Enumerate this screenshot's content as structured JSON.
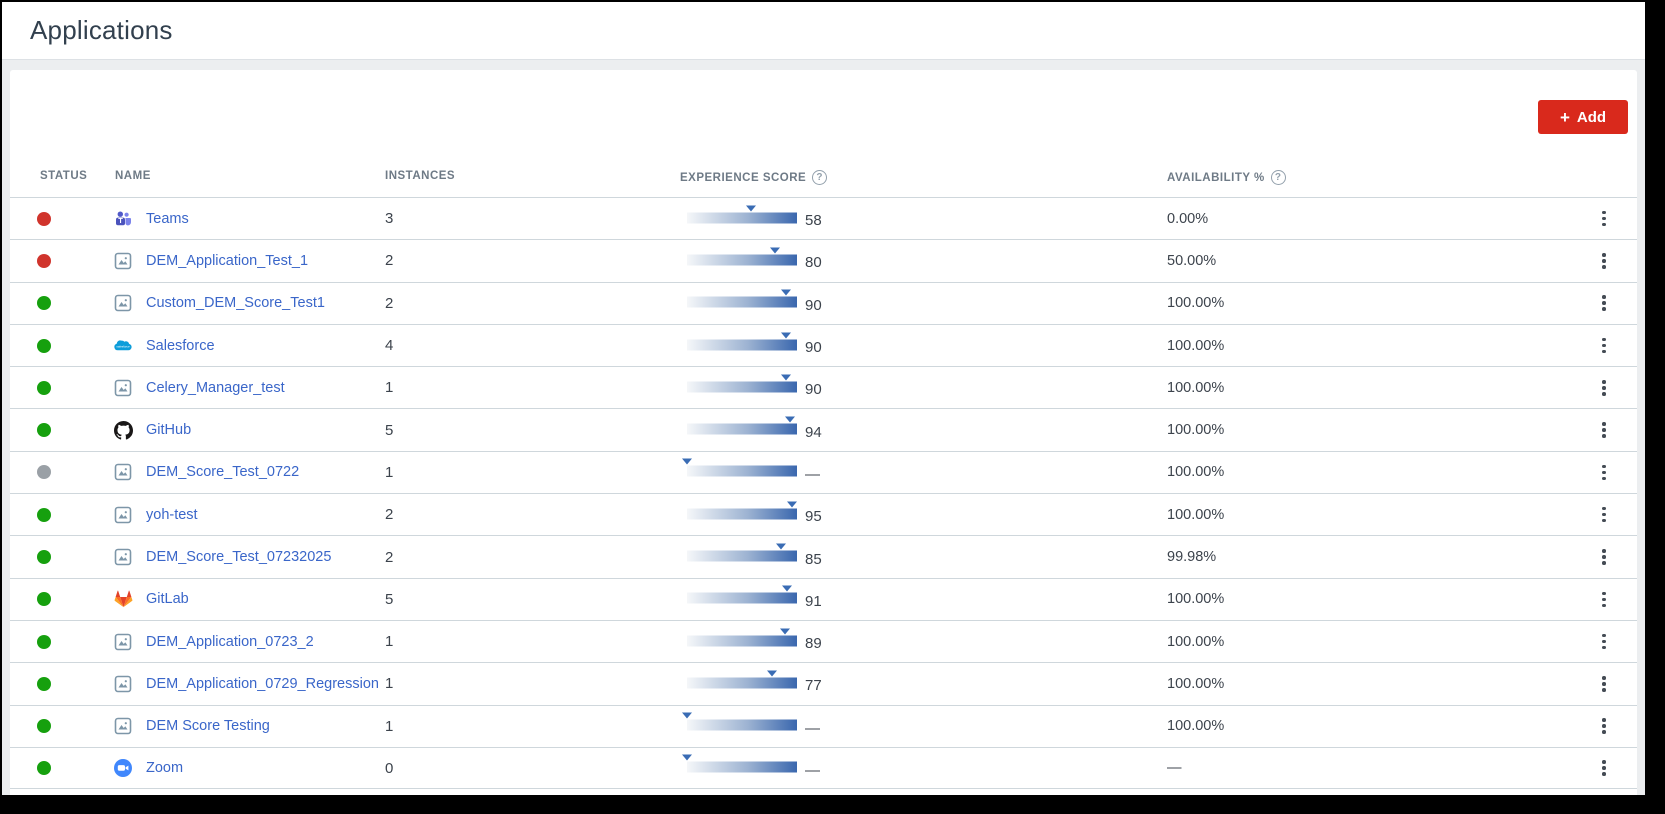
{
  "page_title": "Applications",
  "toolbar": {
    "add_label": "Add",
    "add_plus": "+"
  },
  "help_glyph": "?",
  "colors": {
    "accent_red": "#d9291c",
    "link_blue": "#3a66c9",
    "bar_blue": "#3a6cb4",
    "status_red": "#d0342c",
    "status_green": "#16a00e",
    "status_gray": "#9aa0a6"
  },
  "table": {
    "columns": {
      "status": "Status",
      "name": "Name",
      "instances": "Instances",
      "experience_score": "Experience Score",
      "availability": "Availability %"
    },
    "rows": [
      {
        "status": "red",
        "icon": "teams-icon",
        "name": "Teams",
        "instances": "3",
        "score": 58,
        "score_display": "58",
        "availability": "0.00%"
      },
      {
        "status": "red",
        "icon": "generic-app-icon",
        "name": "DEM_Application_Test_1",
        "instances": "2",
        "score": 80,
        "score_display": "80",
        "availability": "50.00%"
      },
      {
        "status": "green",
        "icon": "generic-app-icon",
        "name": "Custom_DEM_Score_Test1",
        "instances": "2",
        "score": 90,
        "score_display": "90",
        "availability": "100.00%"
      },
      {
        "status": "green",
        "icon": "salesforce-icon",
        "name": "Salesforce",
        "instances": "4",
        "score": 90,
        "score_display": "90",
        "availability": "100.00%"
      },
      {
        "status": "green",
        "icon": "generic-app-icon",
        "name": "Celery_Manager_test",
        "instances": "1",
        "score": 90,
        "score_display": "90",
        "availability": "100.00%"
      },
      {
        "status": "green",
        "icon": "github-icon",
        "name": "GitHub",
        "instances": "5",
        "score": 94,
        "score_display": "94",
        "availability": "100.00%"
      },
      {
        "status": "gray",
        "icon": "generic-app-icon",
        "name": "DEM_Score_Test_0722",
        "instances": "1",
        "score": null,
        "score_display": "—",
        "availability": "100.00%"
      },
      {
        "status": "green",
        "icon": "generic-app-icon",
        "name": "yoh-test",
        "instances": "2",
        "score": 95,
        "score_display": "95",
        "availability": "100.00%"
      },
      {
        "status": "green",
        "icon": "generic-app-icon",
        "name": "DEM_Score_Test_07232025",
        "instances": "2",
        "score": 85,
        "score_display": "85",
        "availability": "99.98%"
      },
      {
        "status": "green",
        "icon": "gitlab-icon",
        "name": "GitLab",
        "instances": "5",
        "score": 91,
        "score_display": "91",
        "availability": "100.00%"
      },
      {
        "status": "green",
        "icon": "generic-app-icon",
        "name": "DEM_Application_0723_2",
        "instances": "1",
        "score": 89,
        "score_display": "89",
        "availability": "100.00%"
      },
      {
        "status": "green",
        "icon": "generic-app-icon",
        "name": "DEM_Application_0729_Regression",
        "instances": "1",
        "score": 77,
        "score_display": "77",
        "availability": "100.00%"
      },
      {
        "status": "green",
        "icon": "generic-app-icon",
        "name": "DEM Score Testing",
        "instances": "1",
        "score": null,
        "score_display": "—",
        "availability": "100.00%"
      },
      {
        "status": "green",
        "icon": "zoom-icon",
        "name": "Zoom",
        "instances": "0",
        "score": null,
        "score_display": "—",
        "availability": "—"
      }
    ]
  }
}
